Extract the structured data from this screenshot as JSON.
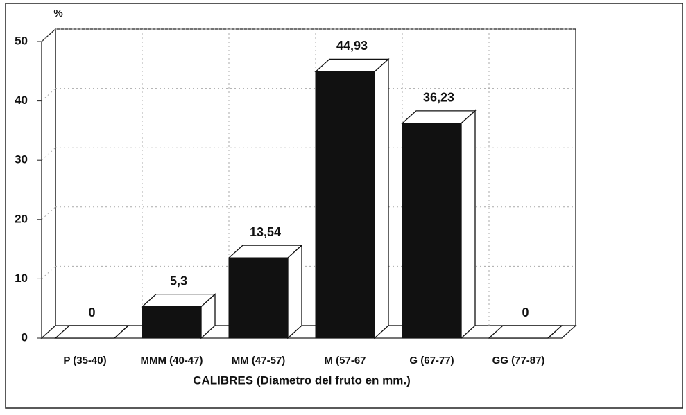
{
  "chart_data": {
    "type": "bar3d",
    "y_axis_label": "%",
    "x_axis_label": "CALIBRES (Diametro del fruto en mm.)",
    "categories": [
      "P (35-40)",
      "MMM (40-47)",
      "MM (47-57)",
      "M (57-67",
      "G (67-77)",
      "GG (77-87)"
    ],
    "values": [
      0,
      5.3,
      13.54,
      44.93,
      36.23,
      0
    ],
    "value_labels": [
      "0",
      "5,3",
      "13,54",
      "44,93",
      "36,23",
      "0"
    ],
    "color": "#111111",
    "ylim": [
      0,
      50
    ],
    "yticks": [
      0,
      10,
      20,
      30,
      40,
      50
    ],
    "grid": true
  }
}
